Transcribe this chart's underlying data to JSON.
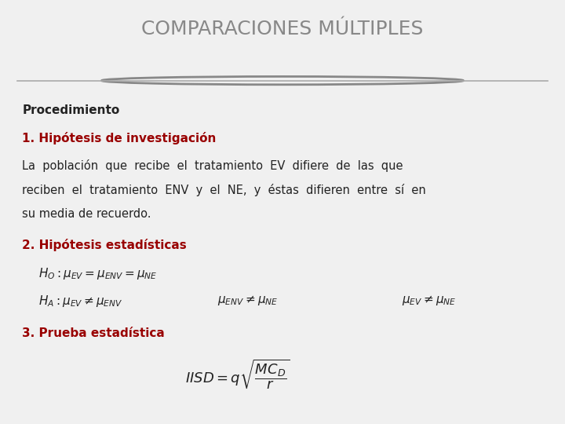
{
  "title": "COMPARACIONES MÚLTIPLES",
  "title_color": "#888888",
  "title_fontsize": 18,
  "bg_color": "#f0f0f0",
  "content_bg": "#f8f8f8",
  "dark_bar_color": "#888888",
  "red_color": "#990000",
  "black_color": "#222222",
  "section1_bold": "Procedimiento",
  "section2_red": "1. Hipótesis de investigación",
  "section2_body": "La  población  que  recibe  el  tratamiento  EV  difiere  de  las  que\nreciben  el  tratamiento  ENV  y  el  NE,  y  éstas  difieren  entre  sí  en\nsu media de recuerdo.",
  "section3_red": "2. Hipótesis estadísticas",
  "section4_red": "3. Prueba estadística"
}
